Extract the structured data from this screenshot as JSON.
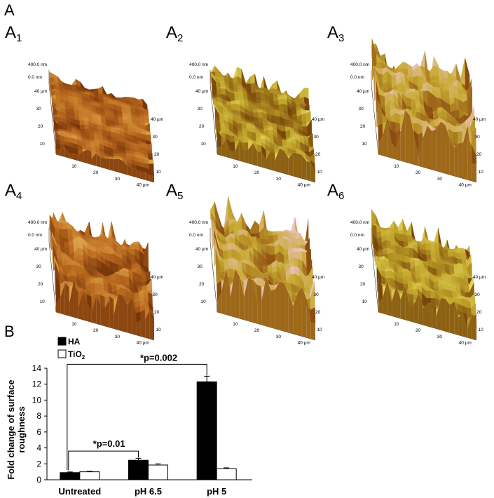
{
  "figure": {
    "panel_a_letter": "A",
    "panel_b_letter": "B",
    "afm_panels": [
      {
        "label_main": "A",
        "label_sub": "1",
        "z_top": "400.0 nm",
        "z_bottom": "0.0 nm",
        "y_ticks": [
          "40 µm",
          "30",
          "20",
          "10"
        ],
        "x_ticks": [
          "10",
          "20",
          "30",
          "40 µm"
        ],
        "roughness": 0.1,
        "palette": "brown"
      },
      {
        "label_main": "A",
        "label_sub": "2",
        "z_top": "400.0 nm",
        "z_bottom": "0.0 nm",
        "y_ticks": [
          "40 µm",
          "30",
          "20",
          "10"
        ],
        "x_ticks": [
          "10",
          "20",
          "30",
          "40 µm"
        ],
        "roughness": 0.35,
        "palette": "yellow"
      },
      {
        "label_main": "A",
        "label_sub": "3",
        "z_top": "400.0 nm",
        "z_bottom": "0.0 nm",
        "y_ticks": [
          "40 µm",
          "30",
          "20",
          "10"
        ],
        "x_ticks": [
          "10",
          "20",
          "30",
          "40 µm"
        ],
        "roughness": 1.0,
        "palette": "pink"
      },
      {
        "label_main": "A",
        "label_sub": "4",
        "z_top": "400.0 nm",
        "z_bottom": "0.0 nm",
        "y_ticks": [
          "40 µm",
          "30",
          "20",
          "10"
        ],
        "x_ticks": [
          "10",
          "20",
          "30",
          "40 µm"
        ],
        "roughness": 0.65,
        "palette": "brown"
      },
      {
        "label_main": "A",
        "label_sub": "5",
        "z_top": "400.0 nm",
        "z_bottom": "0.0 nm",
        "y_ticks": [
          "40 µm",
          "30",
          "20",
          "10"
        ],
        "x_ticks": [
          "10",
          "20",
          "30",
          "40 µm"
        ],
        "roughness": 0.95,
        "palette": "pink"
      },
      {
        "label_main": "A",
        "label_sub": "6",
        "z_top": "400.0 nm",
        "z_bottom": "0.0 nm",
        "y_ticks": [
          "40 µm",
          "30",
          "20",
          "10"
        ],
        "x_ticks": [
          "10",
          "20",
          "30",
          "40 µm"
        ],
        "roughness": 0.55,
        "palette": "yellow"
      }
    ]
  },
  "colors": {
    "surface_brown": "#b86a1e",
    "surface_yellow": "#c8a42a",
    "surface_pink": "#e8b9b4",
    "bar_ha": "#000000",
    "bar_tio2": "#ffffff"
  },
  "chart_data": {
    "type": "bar",
    "ylabel": "Fold change of surface roughness",
    "xlabel": "",
    "categories": [
      "Untreated",
      "pH 6.5",
      "pH 5"
    ],
    "ylim": [
      0,
      14
    ],
    "yticks": [
      0,
      2,
      4,
      6,
      8,
      10,
      12,
      14
    ],
    "series": [
      {
        "name": "HA",
        "values": [
          0.9,
          2.45,
          12.3
        ],
        "errors": [
          0.08,
          0.25,
          0.7
        ],
        "color": "#000000"
      },
      {
        "name": "TiO",
        "name_sub": "2",
        "values": [
          1.0,
          1.85,
          1.4
        ],
        "errors": [
          0.06,
          0.15,
          0.1
        ],
        "color": "#ffffff"
      }
    ],
    "legend_placement": "top-left",
    "annotations": [
      {
        "text": "*p=0.01",
        "from_category": 0,
        "to_category": 1
      },
      {
        "text": "*p=0.002",
        "from_category": 0,
        "to_category": 2
      }
    ]
  }
}
